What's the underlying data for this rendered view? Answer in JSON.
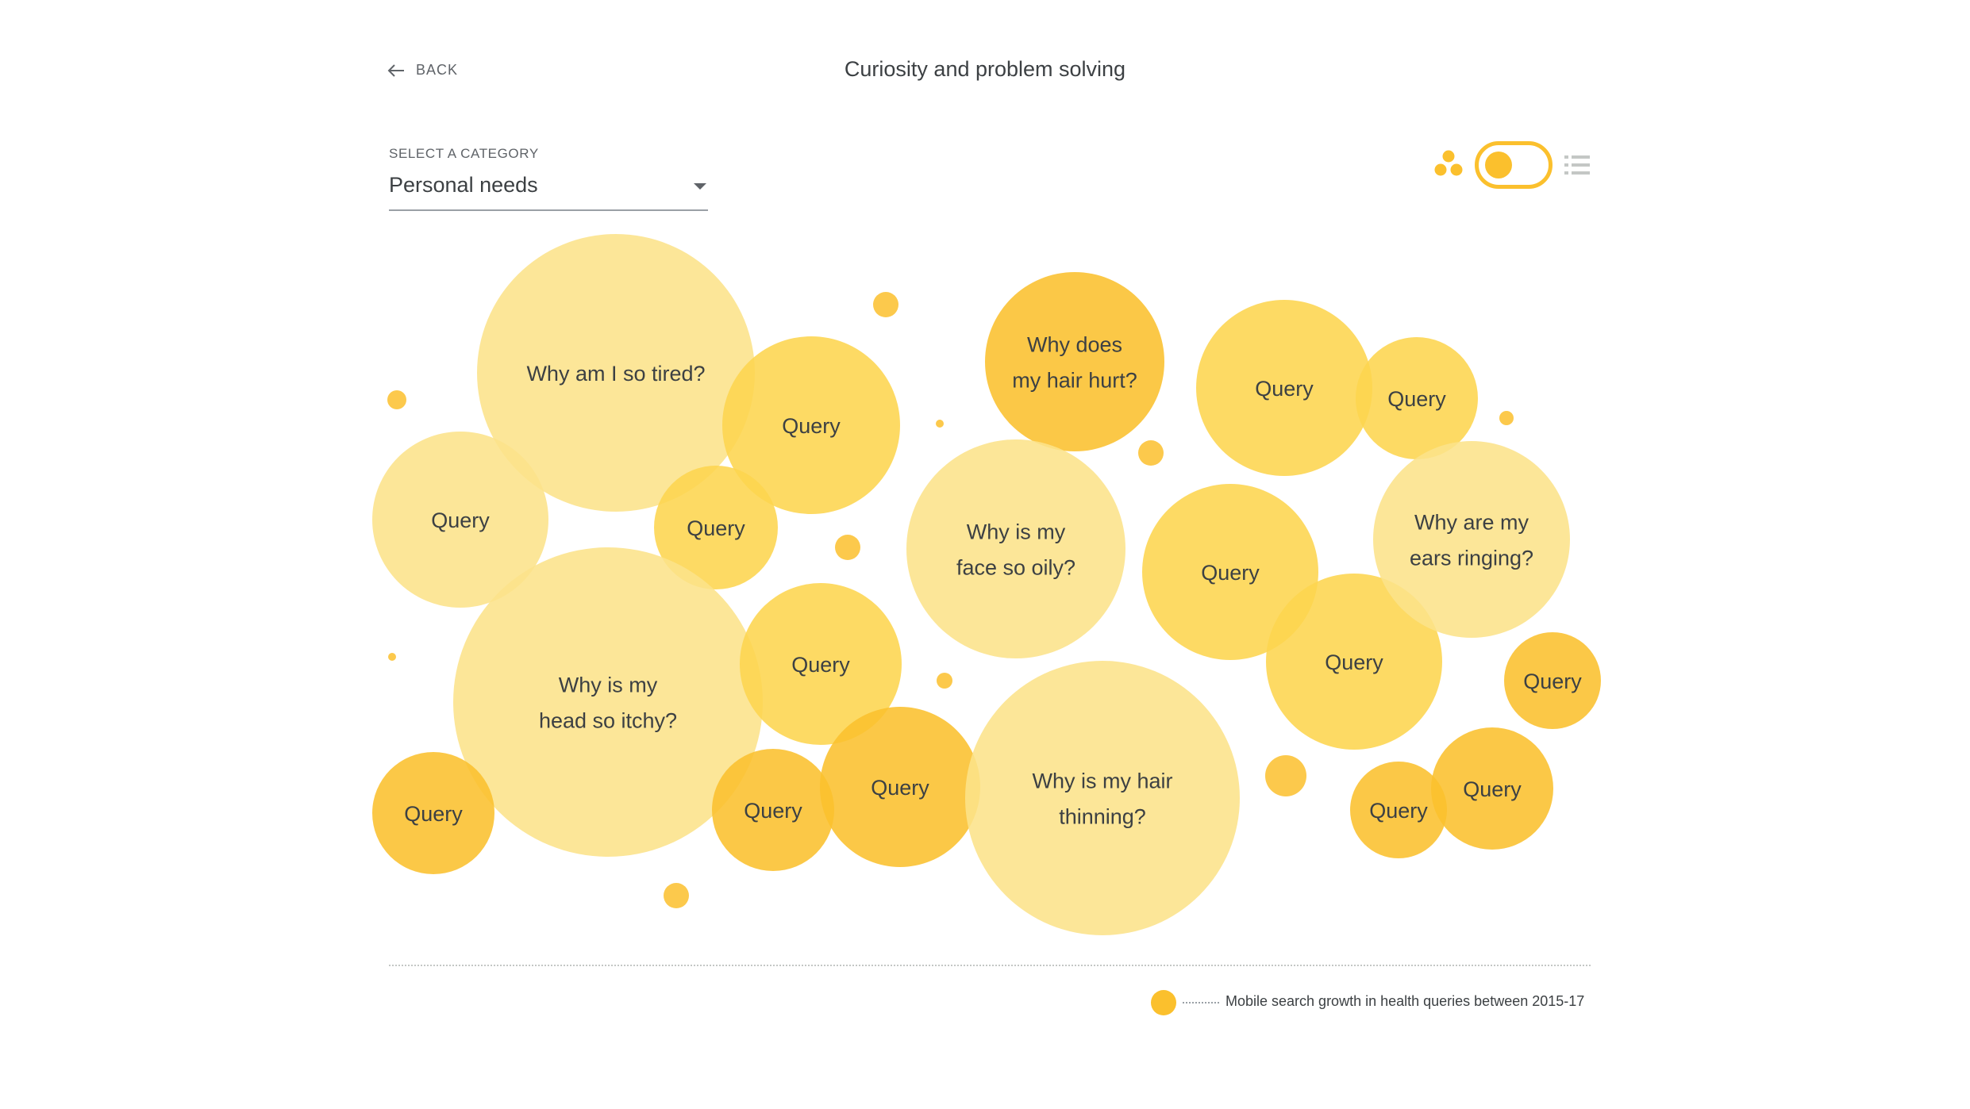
{
  "header": {
    "back_label": "BACK",
    "title": "Curiosity and problem solving"
  },
  "category": {
    "label": "SELECT A CATEGORY",
    "selected": "Personal needs"
  },
  "view_toggle": {
    "active": "bubbles",
    "left_icon": "bubbles-icon",
    "right_icon": "list-icon",
    "accent": "#fbc02d"
  },
  "colors": {
    "light": "#fce38a",
    "medium": "#fdd54f",
    "strong": "#fbc02d",
    "text": "#3c4043"
  },
  "bubbles": [
    {
      "lines": [
        "Why am I so tired?"
      ],
      "tone": "light"
    },
    {
      "lines": [
        "Query"
      ],
      "tone": "medium"
    },
    {
      "lines": [
        "Query"
      ],
      "tone": "light"
    },
    {
      "lines": [
        "Query"
      ],
      "tone": "medium"
    },
    {
      "lines": [
        "Why is my",
        "head so itchy?"
      ],
      "tone": "light"
    },
    {
      "lines": [
        "Query"
      ],
      "tone": "medium"
    },
    {
      "lines": [
        "Query"
      ],
      "tone": "strong"
    },
    {
      "lines": [
        "Query"
      ],
      "tone": "strong"
    },
    {
      "lines": [
        "Query"
      ],
      "tone": "strong"
    },
    {
      "lines": [
        "Why does",
        "my hair hurt?"
      ],
      "tone": "strong"
    },
    {
      "lines": [
        "Why is my",
        "face so oily?"
      ],
      "tone": "light"
    },
    {
      "lines": [
        "Why is my hair",
        "thinning?"
      ],
      "tone": "light"
    },
    {
      "lines": [
        "Query"
      ],
      "tone": "medium"
    },
    {
      "lines": [
        "Query"
      ],
      "tone": "medium"
    },
    {
      "lines": [
        "Query"
      ],
      "tone": "medium"
    },
    {
      "lines": [
        "Query"
      ],
      "tone": "medium"
    },
    {
      "lines": [
        "Why are my",
        "ears ringing?"
      ],
      "tone": "light"
    },
    {
      "lines": [
        "Query"
      ],
      "tone": "strong"
    },
    {
      "lines": [
        "Query"
      ],
      "tone": "strong"
    },
    {
      "lines": [
        "Query"
      ],
      "tone": "strong"
    }
  ],
  "legend": {
    "text": "Mobile search growth in health queries between 2015-17"
  }
}
